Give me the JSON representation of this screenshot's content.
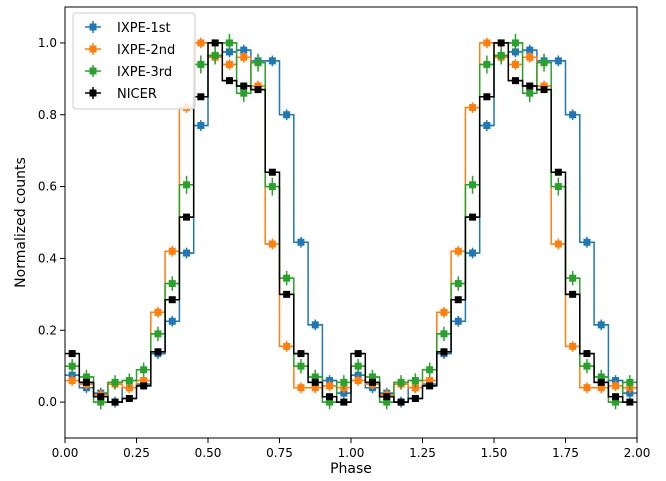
{
  "chart_data": {
    "type": "line",
    "style": "step-with-errorbars",
    "xlabel": "Phase",
    "ylabel": "Normalized counts",
    "xlim": [
      0,
      2
    ],
    "ylim": [
      -0.1,
      1.1
    ],
    "xticks": [
      0,
      0.25,
      0.5,
      0.75,
      1,
      1.25,
      1.5,
      1.75,
      2
    ],
    "xtick_labels": [
      "0.00",
      "0.25",
      "0.50",
      "0.75",
      "1.00",
      "1.25",
      "1.50",
      "1.75",
      "2.00"
    ],
    "yticks": [
      0,
      0.2,
      0.4,
      0.6,
      0.8,
      1.0
    ],
    "ytick_labels": [
      "0.0",
      "0.2",
      "0.4",
      "0.6",
      "0.8",
      "1.0"
    ],
    "grid": false,
    "legend_position": "top-left",
    "bin_width": 0.05,
    "bin_centers": [
      0.025,
      0.075,
      0.125,
      0.175,
      0.225,
      0.275,
      0.325,
      0.375,
      0.425,
      0.475,
      0.525,
      0.575,
      0.625,
      0.675,
      0.725,
      0.775,
      0.825,
      0.875,
      0.925,
      0.975
    ],
    "repeat_period": 1,
    "series": [
      {
        "name": "IXPE-1st",
        "color": "#1f77b4",
        "values": [
          0.075,
          0.04,
          0.025,
          0.0,
          0.04,
          0.05,
          0.135,
          0.225,
          0.415,
          0.77,
          0.965,
          0.975,
          0.98,
          0.95,
          0.95,
          0.8,
          0.445,
          0.215,
          0.06,
          0.025
        ],
        "errors": [
          0.015,
          0.015,
          0.015,
          0.015,
          0.015,
          0.015,
          0.015,
          0.015,
          0.015,
          0.015,
          0.015,
          0.015,
          0.015,
          0.015,
          0.015,
          0.015,
          0.015,
          0.015,
          0.015,
          0.015
        ]
      },
      {
        "name": "IXPE-2nd",
        "color": "#ff7f0e",
        "values": [
          0.06,
          0.05,
          0.02,
          0.05,
          0.04,
          0.06,
          0.25,
          0.42,
          0.82,
          1.0,
          0.96,
          0.94,
          0.96,
          0.88,
          0.44,
          0.155,
          0.04,
          0.04,
          0.045,
          0.04
        ],
        "errors": [
          0.015,
          0.015,
          0.015,
          0.015,
          0.015,
          0.015,
          0.015,
          0.015,
          0.015,
          0.015,
          0.015,
          0.015,
          0.015,
          0.015,
          0.015,
          0.015,
          0.015,
          0.015,
          0.015,
          0.015
        ]
      },
      {
        "name": "IXPE-3rd",
        "color": "#2ca02c",
        "values": [
          0.1,
          0.07,
          0.0,
          0.055,
          0.06,
          0.09,
          0.19,
          0.33,
          0.605,
          0.94,
          0.965,
          1.0,
          0.86,
          0.945,
          0.6,
          0.345,
          0.1,
          0.07,
          0.0,
          0.055
        ],
        "errors": [
          0.02,
          0.02,
          0.02,
          0.02,
          0.02,
          0.02,
          0.02,
          0.02,
          0.025,
          0.025,
          0.025,
          0.025,
          0.025,
          0.025,
          0.025,
          0.02,
          0.02,
          0.02,
          0.02,
          0.02
        ]
      },
      {
        "name": "NICER",
        "color": "#000000",
        "values": [
          0.135,
          0.055,
          0.015,
          0.0,
          0.01,
          0.045,
          0.14,
          0.285,
          0.515,
          0.85,
          1.0,
          0.895,
          0.88,
          0.87,
          0.64,
          0.3,
          0.135,
          0.055,
          0.015,
          0.0
        ],
        "errors": [
          0.008,
          0.008,
          0.008,
          0.008,
          0.008,
          0.008,
          0.008,
          0.008,
          0.008,
          0.008,
          0.008,
          0.008,
          0.008,
          0.008,
          0.008,
          0.008,
          0.008,
          0.008,
          0.008,
          0.008
        ]
      }
    ]
  }
}
